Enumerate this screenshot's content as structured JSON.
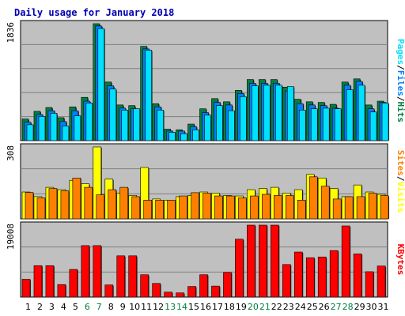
{
  "title": "Daily usage for January 2018",
  "colors": {
    "background": "#c0c0c0",
    "hits": "#008040",
    "files": "#0080ff",
    "pages": "#00e0ff",
    "visits": "#ffff00",
    "sites": "#ff8000",
    "kbytes": "#ff0000",
    "weekend_label": "#008040"
  },
  "chart_data": [
    {
      "type": "bar",
      "panel": "hits-files-pages",
      "ymax_label": "1836",
      "ylim": [
        0,
        1836
      ],
      "legend": [
        "Pages",
        "/",
        "Files",
        "/",
        "Hits"
      ],
      "categories": [
        "1",
        "2",
        "3",
        "4",
        "5",
        "6",
        "7",
        "8",
        "9",
        "10",
        "11",
        "12",
        "13",
        "14",
        "15",
        "16",
        "17",
        "18",
        "19",
        "20",
        "21",
        "22",
        "23",
        "24",
        "25",
        "26",
        "27",
        "28",
        "29",
        "30",
        "31"
      ],
      "weekend_days": [
        "6",
        "7",
        "13",
        "14",
        "20",
        "21",
        "27",
        "28"
      ],
      "series": [
        {
          "name": "Hits",
          "values": [
            340,
            460,
            520,
            360,
            530,
            680,
            1836,
            920,
            560,
            550,
            1480,
            580,
            180,
            170,
            260,
            500,
            660,
            610,
            790,
            960,
            960,
            960,
            840,
            650,
            610,
            600,
            570,
            920,
            970,
            560,
            620
          ]
        },
        {
          "name": "Files",
          "values": [
            290,
            410,
            470,
            300,
            470,
            620,
            1800,
            860,
            510,
            500,
            1440,
            530,
            150,
            150,
            220,
            440,
            600,
            560,
            740,
            900,
            900,
            900,
            780,
            580,
            560,
            550,
            510,
            870,
            930,
            500,
            600
          ]
        },
        {
          "name": "Pages",
          "values": [
            250,
            380,
            430,
            230,
            390,
            590,
            1760,
            810,
            480,
            500,
            1420,
            480,
            130,
            110,
            170,
            400,
            550,
            470,
            690,
            860,
            870,
            870,
            850,
            480,
            500,
            510,
            500,
            800,
            870,
            450,
            590
          ]
        }
      ]
    },
    {
      "type": "bar",
      "panel": "visits-sites",
      "ymax_label": "308",
      "ylim": [
        0,
        308
      ],
      "legend": [
        "Sites",
        "/",
        "Visits"
      ],
      "categories": [
        "1",
        "2",
        "3",
        "4",
        "5",
        "6",
        "7",
        "8",
        "9",
        "10",
        "11",
        "12",
        "13",
        "14",
        "15",
        "16",
        "17",
        "18",
        "19",
        "20",
        "21",
        "22",
        "23",
        "24",
        "25",
        "26",
        "27",
        "28",
        "29",
        "30",
        "31"
      ],
      "series": [
        {
          "name": "Visits",
          "values": [
            115,
            95,
            135,
            125,
            165,
            150,
            308,
            170,
            110,
            100,
            220,
            85,
            80,
            95,
            100,
            115,
            110,
            100,
            98,
            125,
            130,
            135,
            110,
            125,
            190,
            175,
            130,
            95,
            145,
            115,
            105
          ]
        },
        {
          "name": "Sites",
          "values": [
            113,
            90,
            130,
            120,
            175,
            135,
            103,
            125,
            135,
            95,
            80,
            80,
            80,
            98,
            112,
            110,
            98,
            98,
            90,
            98,
            105,
            100,
            100,
            80,
            180,
            140,
            85,
            95,
            95,
            110,
            100
          ]
        }
      ]
    },
    {
      "type": "bar",
      "panel": "kbytes",
      "ymax_label": "19008",
      "ylim": [
        0,
        19008
      ],
      "legend": [
        "KBytes"
      ],
      "categories": [
        "1",
        "2",
        "3",
        "4",
        "5",
        "6",
        "7",
        "8",
        "9",
        "10",
        "11",
        "12",
        "13",
        "14",
        "15",
        "16",
        "17",
        "18",
        "19",
        "20",
        "21",
        "22",
        "23",
        "24",
        "25",
        "26",
        "27",
        "28",
        "29",
        "30",
        "31"
      ],
      "series": [
        {
          "name": "KBytes",
          "values": [
            4700,
            8300,
            8300,
            3300,
            7300,
            13600,
            13600,
            3200,
            10900,
            10900,
            5900,
            3600,
            1300,
            1100,
            2800,
            5900,
            2900,
            6500,
            15300,
            19008,
            19008,
            19008,
            8600,
            11900,
            10400,
            10600,
            12300,
            18800,
            11400,
            6700,
            8200
          ]
        }
      ]
    }
  ]
}
